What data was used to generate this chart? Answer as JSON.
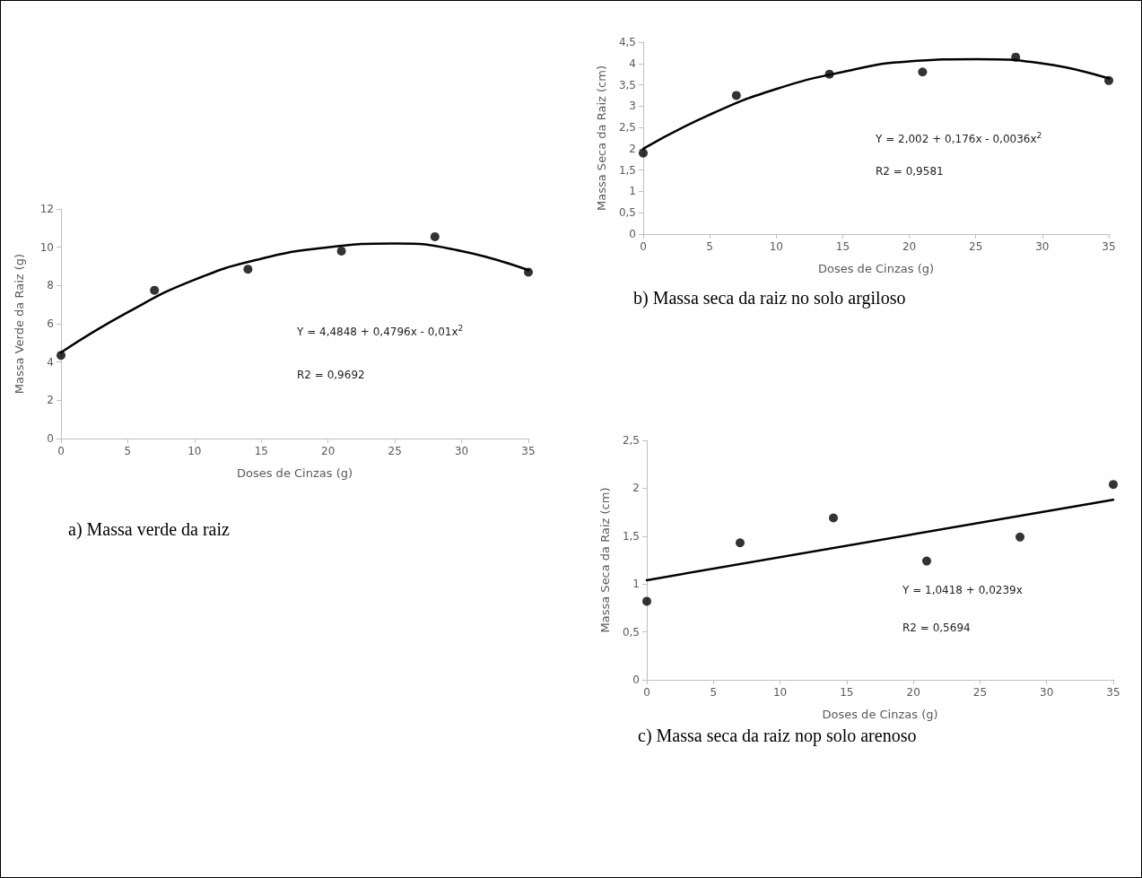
{
  "chart_data": [
    {
      "type": "scatter",
      "title": "a)  Massa verde da raiz",
      "xlabel": "Doses de Cinzas (g)",
      "ylabel": "Massa Verde da Raiz (g)",
      "annotations": [
        "Y = 4,4848 + 0,4796x - 0,01x$^{2}$",
        "R2 = 0,9692"
      ],
      "xlim": [
        0,
        35
      ],
      "xticks": [
        0,
        5,
        10,
        15,
        20,
        25,
        30,
        35
      ],
      "ylim": [
        0,
        12
      ],
      "yticks": [
        0,
        2,
        4,
        6,
        8,
        10,
        12
      ],
      "marker": "circle",
      "series": [
        {
          "color": "#000000",
          "x": [
            0,
            7,
            14,
            21,
            28,
            35
          ],
          "values": [
            4.35,
            7.75,
            8.85,
            9.8,
            10.55,
            8.7
          ]
        },
        {
          "type": "line",
          "color": "#000000",
          "marker": "none",
          "line_style": "solid",
          "x": [
            0,
            5,
            10,
            15,
            20,
            25,
            30,
            35
          ],
          "values": [
            4.5,
            6.6,
            8.3,
            9.4,
            10.0,
            10.2,
            9.8,
            8.8
          ]
        }
      ]
    },
    {
      "type": "scatter",
      "title": "b)  Massa seca da raiz no solo argiloso",
      "xlabel": "Doses de Cinzas (g)",
      "ylabel": "Massa Seca da Raiz (cm)",
      "annotations": [
        "Y = 2,002 + 0,176x - 0,0036x$^{2}$",
        "R2 = 0,9581"
      ],
      "xlim": [
        0,
        35
      ],
      "xticks": [
        0,
        5,
        10,
        15,
        20,
        25,
        30,
        35
      ],
      "ylim": [
        0,
        4.5
      ],
      "yticks": [
        0,
        {
          "value": 0.5,
          "label": "0,5"
        },
        1,
        {
          "value": 1.5,
          "label": "1,5"
        },
        2,
        {
          "value": 2.5,
          "label": "2,5"
        },
        3,
        {
          "value": 3.5,
          "label": "3,5"
        },
        4,
        {
          "value": 4.5,
          "label": "4,5"
        }
      ],
      "marker": "circle",
      "series": [
        {
          "color": "#000000",
          "x": [
            0,
            7,
            14,
            21,
            28,
            35
          ],
          "values": [
            1.9,
            3.25,
            3.75,
            3.8,
            4.15,
            3.6
          ]
        },
        {
          "type": "line",
          "color": "#000000",
          "marker": "none",
          "line_style": "solid",
          "x": [
            0,
            5,
            10,
            15,
            20,
            25,
            30,
            35
          ],
          "values": [
            2.0,
            2.8,
            3.4,
            3.8,
            4.05,
            4.1,
            4.0,
            3.65
          ]
        }
      ]
    },
    {
      "type": "scatter",
      "title": "c)  Massa seca da raiz nop solo arenoso",
      "xlabel": "Doses de Cinzas (g)",
      "ylabel": "Massa Seca da Raiz (cm)",
      "annotations": [
        "Y = 1,0418 + 0,0239x",
        "R2 = 0,5694"
      ],
      "xlim": [
        0,
        35
      ],
      "xticks": [
        0,
        5,
        10,
        15,
        20,
        25,
        30,
        35
      ],
      "ylim": [
        0,
        2.5
      ],
      "yticks": [
        0,
        {
          "value": 0.5,
          "label": "0,5"
        },
        1,
        {
          "value": 1.5,
          "label": "1,5"
        },
        2,
        {
          "value": 2.5,
          "label": "2,5"
        }
      ],
      "marker": "circle",
      "series": [
        {
          "color": "#000000",
          "x": [
            0,
            7,
            14,
            21,
            28,
            35
          ],
          "values": [
            0.82,
            1.43,
            1.69,
            1.24,
            1.49,
            2.04
          ]
        },
        {
          "type": "line",
          "color": "#000000",
          "marker": "none",
          "line_style": "solid",
          "x": [
            0,
            35
          ],
          "values": [
            1.04,
            1.88
          ]
        }
      ]
    }
  ]
}
